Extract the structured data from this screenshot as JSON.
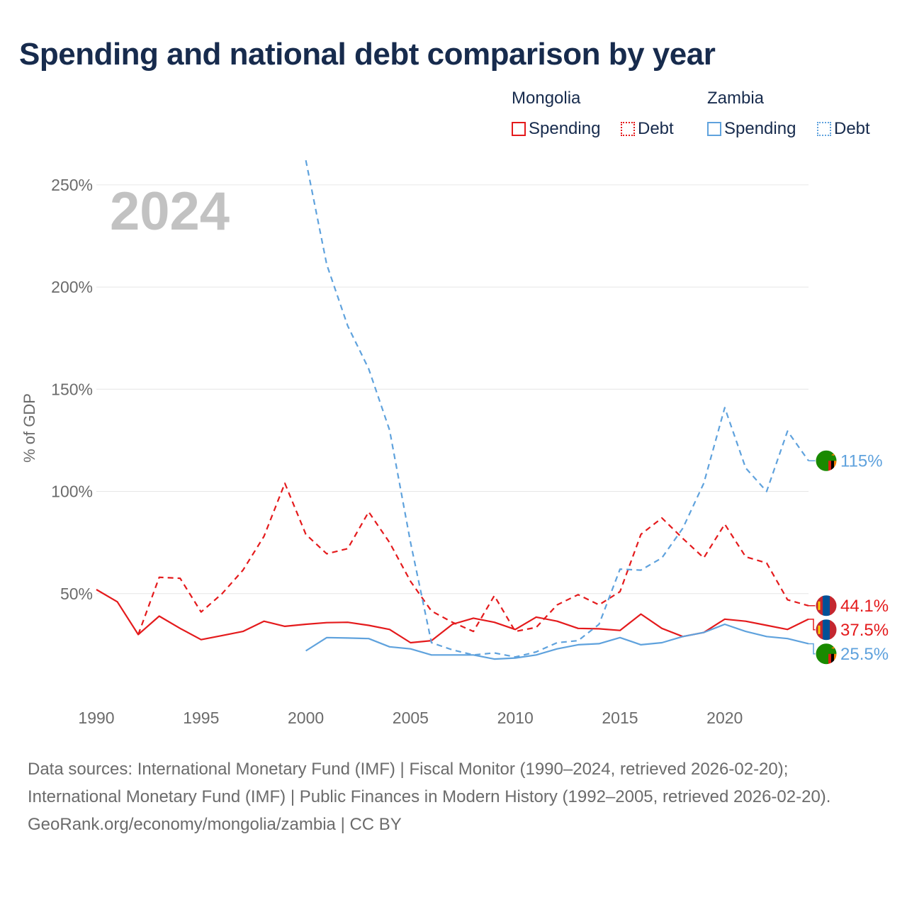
{
  "title": "Spending and national debt comparison by year",
  "legend": {
    "groups": [
      {
        "country": "Mongolia",
        "spending_label": "Spending",
        "debt_label": "Debt",
        "color": "#e41a1c"
      },
      {
        "country": "Zambia",
        "spending_label": "Spending",
        "debt_label": "Debt",
        "color": "#5fa2dd"
      }
    ]
  },
  "chart_data": {
    "type": "line",
    "title": "Spending and national debt comparison by year",
    "xlabel": "",
    "ylabel": "% of GDP",
    "xlim": [
      1990,
      2024
    ],
    "ylim": [
      0,
      260
    ],
    "x_ticks": [
      1990,
      1995,
      2000,
      2005,
      2010,
      2015,
      2020
    ],
    "y_ticks": [
      50,
      100,
      150,
      200,
      250
    ],
    "y_tick_labels": [
      "50%",
      "100%",
      "150%",
      "200%",
      "250%"
    ],
    "year_watermark": "2024",
    "series": [
      {
        "name": "Mongolia Spending",
        "country": "Mongolia",
        "metric": "Spending",
        "color": "#e41a1c",
        "style": "solid",
        "x": [
          1990,
          1991,
          1992,
          1993,
          1994,
          1995,
          1996,
          1997,
          1998,
          1999,
          2000,
          2001,
          2002,
          2003,
          2004,
          2005,
          2006,
          2007,
          2008,
          2009,
          2010,
          2011,
          2012,
          2013,
          2014,
          2015,
          2016,
          2017,
          2018,
          2019,
          2020,
          2021,
          2022,
          2023,
          2024
        ],
        "values": [
          52,
          46,
          30,
          39,
          33,
          27.5,
          29.5,
          31.5,
          36.5,
          34,
          35,
          35.8,
          36,
          34.5,
          32.5,
          26,
          27,
          35,
          38,
          36,
          32.5,
          38.5,
          36.5,
          33,
          32.8,
          32,
          40,
          33,
          29,
          31,
          37.5,
          36.5,
          34.5,
          32.5,
          37.5
        ],
        "end_label": "37.5%"
      },
      {
        "name": "Mongolia Debt",
        "country": "Mongolia",
        "metric": "Debt",
        "color": "#e41a1c",
        "style": "dashed",
        "x": [
          1992,
          1993,
          1994,
          1995,
          1996,
          1997,
          1998,
          1999,
          2000,
          2001,
          2002,
          2003,
          2004,
          2005,
          2006,
          2007,
          2008,
          2009,
          2010,
          2011,
          2012,
          2013,
          2014,
          2015,
          2016,
          2017,
          2018,
          2019,
          2020,
          2021,
          2022,
          2023,
          2024
        ],
        "values": [
          30,
          58,
          57.5,
          41,
          50,
          61.5,
          78,
          104,
          79,
          69.5,
          72,
          90,
          75,
          56,
          41.5,
          36,
          31.5,
          49,
          31.5,
          33.5,
          44.5,
          49.5,
          44.5,
          51,
          79,
          87,
          77,
          67.5,
          84,
          68,
          65,
          47,
          44.1
        ],
        "end_label": "44.1%"
      },
      {
        "name": "Zambia Spending",
        "country": "Zambia",
        "metric": "Spending",
        "color": "#5fa2dd",
        "style": "solid",
        "x": [
          2000,
          2001,
          2002,
          2003,
          2004,
          2005,
          2006,
          2007,
          2008,
          2009,
          2010,
          2011,
          2012,
          2013,
          2014,
          2015,
          2016,
          2017,
          2018,
          2019,
          2020,
          2021,
          2022,
          2023,
          2024
        ],
        "values": [
          22,
          28.5,
          28.3,
          28,
          24,
          23,
          20,
          20,
          20,
          18,
          18.5,
          20,
          23,
          25,
          25.5,
          28.5,
          25,
          26,
          29,
          31,
          35,
          31.5,
          29,
          28,
          25.5
        ],
        "end_label": "25.5%"
      },
      {
        "name": "Zambia Debt",
        "country": "Zambia",
        "metric": "Debt",
        "color": "#5fa2dd",
        "style": "dashed",
        "x": [
          2000,
          2001,
          2002,
          2003,
          2004,
          2005,
          2006,
          2007,
          2008,
          2009,
          2010,
          2011,
          2012,
          2013,
          2014,
          2015,
          2016,
          2017,
          2018,
          2019,
          2020,
          2021,
          2022,
          2023,
          2024
        ],
        "values": [
          262,
          211,
          181,
          160,
          130,
          75,
          26,
          22.5,
          20,
          21,
          19,
          21.5,
          26,
          27,
          35,
          62,
          61.5,
          67.5,
          82,
          104,
          141,
          111.5,
          100,
          129.5,
          115
        ],
        "end_label": "115%"
      }
    ]
  },
  "footer": {
    "sources": "Data sources: International Monetary Fund (IMF) | Fiscal Monitor (1990–2024, retrieved 2026-02-20); International Monetary Fund (IMF) | Public Finances in Modern History (1992–2005, retrieved 2026-02-20).",
    "credit": "GeoRank.org/economy/mongolia/zambia | CC BY"
  }
}
